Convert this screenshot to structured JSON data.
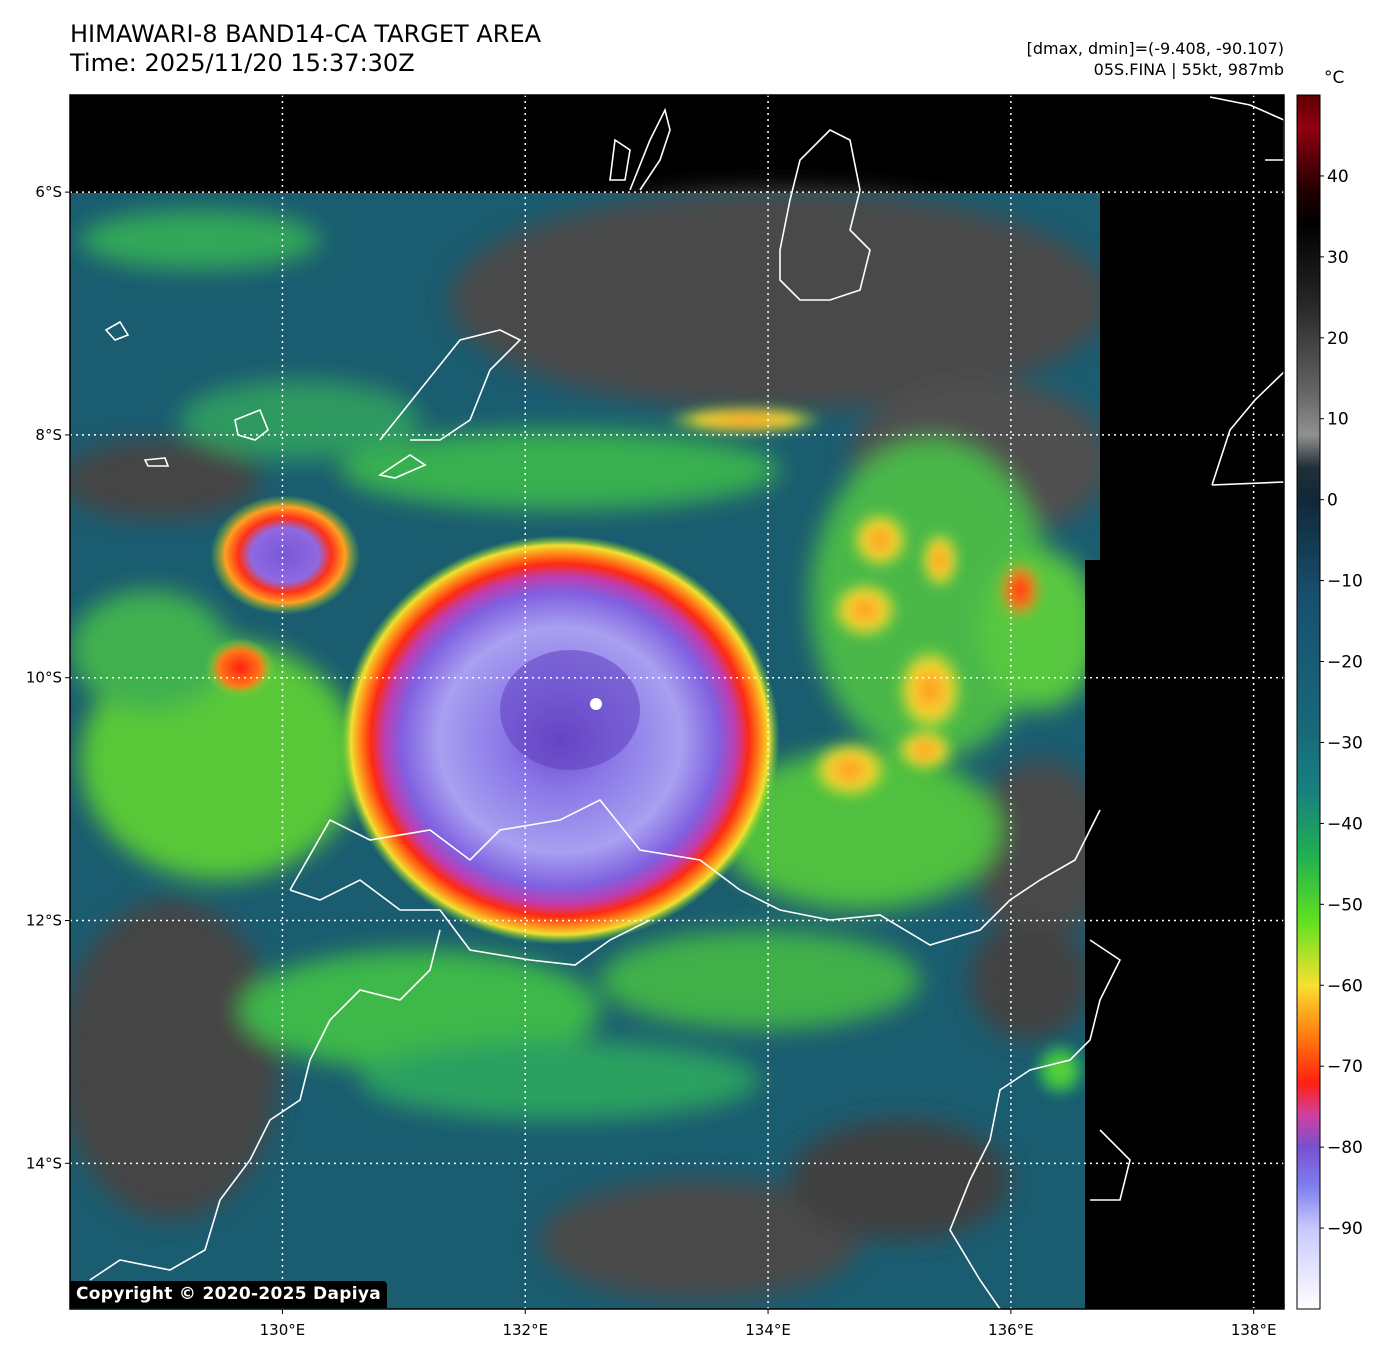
{
  "title": {
    "line1": "HIMAWARI-8 BAND14-CA TARGET AREA",
    "line2": "Time: 2025/11/20 15:37:30Z"
  },
  "info": {
    "line1": "[dmax, dmin]=(-9.408, -90.107)",
    "line2": "05S.FINA | 55kt, 987mb"
  },
  "map": {
    "lon_min": 128.25,
    "lon_max": 138.25,
    "lat_top": -5.2,
    "lat_bottom": -15.2,
    "lon_ticks": [
      130,
      132,
      134,
      136,
      138
    ],
    "lon_tick_labels": [
      "130°E",
      "132°E",
      "134°E",
      "136°E",
      "138°E"
    ],
    "lat_ticks": [
      -6,
      -8,
      -10,
      -12,
      -14
    ],
    "lat_tick_labels": [
      "6°S",
      "8°S",
      "10°S",
      "12°S",
      "14°S"
    ],
    "gridlines": true,
    "storm_center": {
      "lon": 132.6,
      "lat": -10.2
    }
  },
  "colorbar": {
    "unit": "°C",
    "vmin": -100,
    "vmax": 50,
    "ticks": [
      40,
      30,
      20,
      10,
      0,
      -10,
      -20,
      -30,
      -40,
      -50,
      -60,
      -70,
      -80,
      -90
    ],
    "tick_labels": [
      "40",
      "30",
      "20",
      "10",
      "0",
      "−10",
      "−20",
      "−30",
      "−40",
      "−50",
      "−60",
      "−70",
      "−80",
      "−90"
    ],
    "stops": [
      {
        "v": -100,
        "c": "#ffffff"
      },
      {
        "v": -90,
        "c": "#c8c8ff"
      },
      {
        "v": -85,
        "c": "#8080f0"
      },
      {
        "v": -80,
        "c": "#7850d0"
      },
      {
        "v": -76,
        "c": "#d040a0"
      },
      {
        "v": -72,
        "c": "#ff2010"
      },
      {
        "v": -66,
        "c": "#ff8010"
      },
      {
        "v": -60,
        "c": "#f8e030"
      },
      {
        "v": -52,
        "c": "#60e020"
      },
      {
        "v": -44,
        "c": "#20b050"
      },
      {
        "v": -36,
        "c": "#188080"
      },
      {
        "v": -28,
        "c": "#186878"
      },
      {
        "v": -12,
        "c": "#185070"
      },
      {
        "v": 0,
        "c": "#102838"
      },
      {
        "v": 4,
        "c": "#203038"
      },
      {
        "v": 8,
        "c": "#909090"
      },
      {
        "v": 14,
        "c": "#606060"
      },
      {
        "v": 24,
        "c": "#282828"
      },
      {
        "v": 34,
        "c": "#000000"
      },
      {
        "v": 38,
        "c": "#200000"
      },
      {
        "v": 46,
        "c": "#900010"
      },
      {
        "v": 50,
        "c": "#600000"
      }
    ]
  },
  "copyright": "Copyright © 2020-2025 Dapiya"
}
